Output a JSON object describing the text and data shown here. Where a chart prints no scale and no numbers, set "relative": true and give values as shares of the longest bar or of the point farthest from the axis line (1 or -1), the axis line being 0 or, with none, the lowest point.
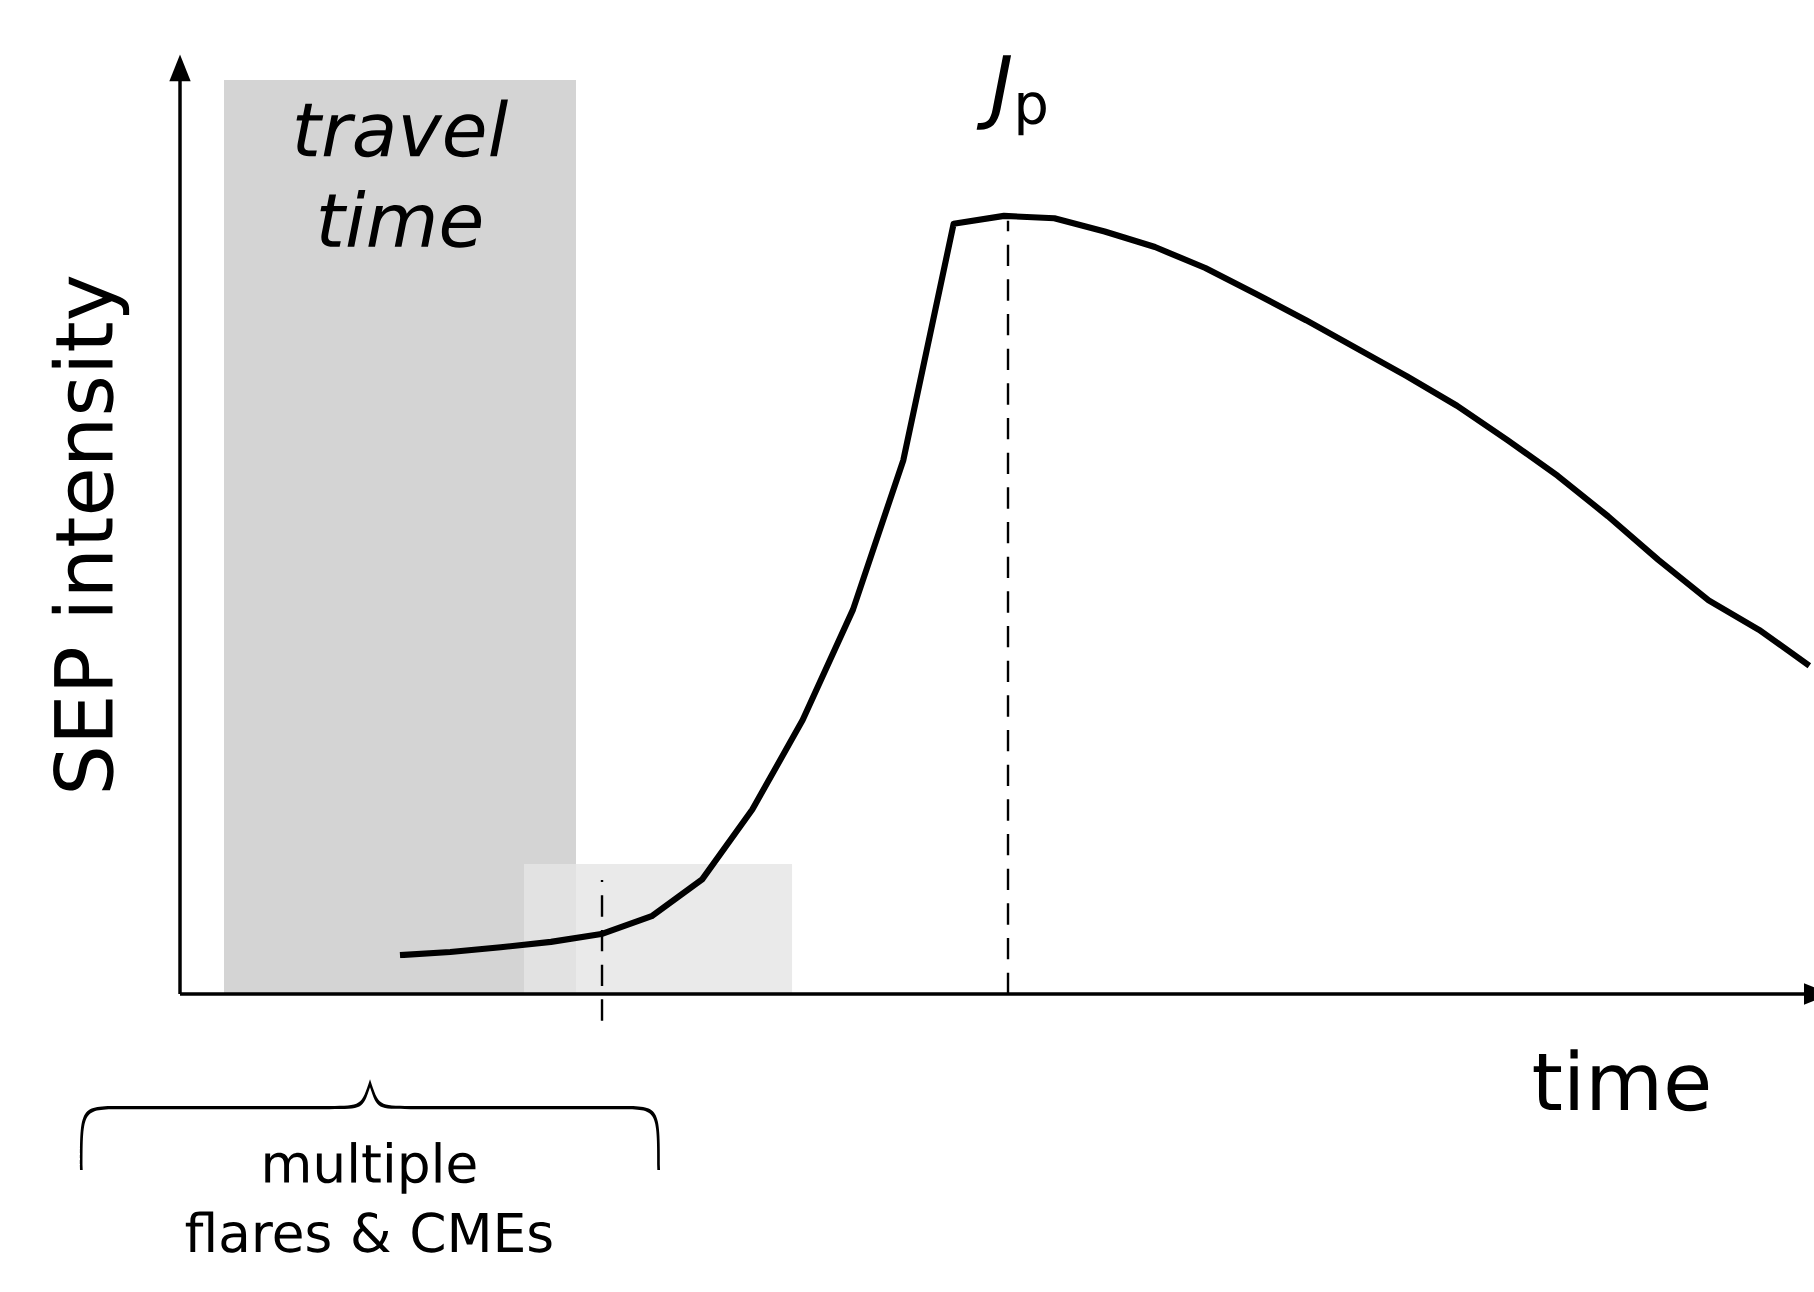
{
  "chart_data": {
    "type": "line",
    "xlabel": "time",
    "ylabel": "SEP intensity",
    "relative": true,
    "tick_labels": false,
    "categories": [
      null,
      null,
      null,
      null,
      null,
      null,
      null,
      null,
      null,
      null,
      null,
      null,
      null,
      null,
      null,
      null,
      null,
      null,
      null,
      null,
      null,
      null,
      null,
      null,
      null,
      null,
      null,
      null,
      null
    ],
    "series": [
      {
        "color": "#000000",
        "values": [
          0.05,
          0.054,
          0.06,
          0.067,
          0.077,
          0.1,
          0.147,
          0.237,
          0.352,
          0.494,
          0.686,
          0.99,
          1,
          0.997,
          0.98,
          0.96,
          0.933,
          0.9,
          0.866,
          0.83,
          0.794,
          0.756,
          0.712,
          0.666,
          0.614,
          0.558,
          0.506,
          0.468,
          0.422
        ]
      }
    ],
    "annotations": [
      "travel time",
      "*J*$_{p}$",
      "multiple flares & CMEs"
    ]
  }
}
